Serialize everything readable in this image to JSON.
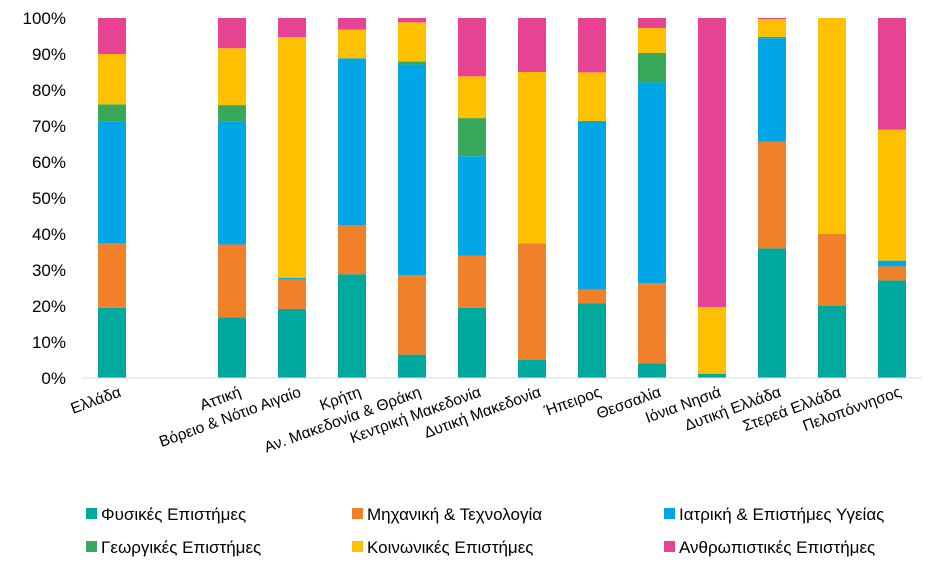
{
  "chart_data": {
    "type": "bar",
    "stacked": true,
    "normalized": true,
    "categories": [
      "Ελλάδα",
      "",
      "Αττική",
      "Βόρειο & Νότιο Αιγαίο",
      "Κρήτη",
      "Αν. Μακεδονία & Θράκη",
      "Κεντρική Μακεδονία",
      "Δυτική Μακεδονία",
      "Ήπειρος",
      "Θεσσαλία",
      "Ιόνια Νησιά",
      "Δυτική Ελλάδα",
      "Στερεά Ελλάδα",
      "Πελοπόννησος"
    ],
    "y_ticks": [
      "0%",
      "10%",
      "20%",
      "30%",
      "40%",
      "50%",
      "60%",
      "70%",
      "80%",
      "90%",
      "100%"
    ],
    "ylim": [
      0,
      100
    ],
    "grid": false,
    "legend_position": "bottom",
    "series": [
      {
        "name": "Φυσικές Επιστήμες",
        "color": "#00a99d",
        "values": [
          19.5,
          null,
          16.8,
          19.2,
          28.8,
          6.5,
          19.5,
          5.0,
          20.7,
          4.1,
          1.2,
          36.0,
          20.0,
          27.1
        ]
      },
      {
        "name": "Μηχανική & Τεχνολογία",
        "color": "#f0812a",
        "values": [
          18.0,
          null,
          20.3,
          8.2,
          13.6,
          22.1,
          14.5,
          32.4,
          3.9,
          22.2,
          0.0,
          29.6,
          20.0,
          3.9
        ]
      },
      {
        "name": "Ιατρική & Επιστήμες Υγείας",
        "color": "#00a6e6",
        "values": [
          33.8,
          null,
          34.2,
          0.4,
          46.4,
          58.5,
          27.6,
          0.0,
          46.8,
          55.8,
          0.0,
          28.8,
          0.0,
          1.6
        ]
      },
      {
        "name": "Γεωργικές Επιστήμες",
        "color": "#3aa85a",
        "values": [
          4.7,
          null,
          4.5,
          0.0,
          0.0,
          0.8,
          10.6,
          0.0,
          0.0,
          8.2,
          0.0,
          0.4,
          0.0,
          0.0
        ]
      },
      {
        "name": "Κοινωνικές Επιστήμες",
        "color": "#ffc000",
        "values": [
          14.0,
          null,
          15.8,
          66.9,
          8.0,
          10.9,
          11.6,
          47.6,
          13.5,
          6.9,
          18.5,
          4.9,
          60.0,
          36.4
        ]
      },
      {
        "name": "Ανθρωπιστικές Επιστήμες",
        "color": "#e84393",
        "values": [
          10.0,
          null,
          8.4,
          5.3,
          3.2,
          1.2,
          16.2,
          15.0,
          15.1,
          2.8,
          80.3,
          0.3,
          0.0,
          31.0
        ]
      }
    ]
  }
}
